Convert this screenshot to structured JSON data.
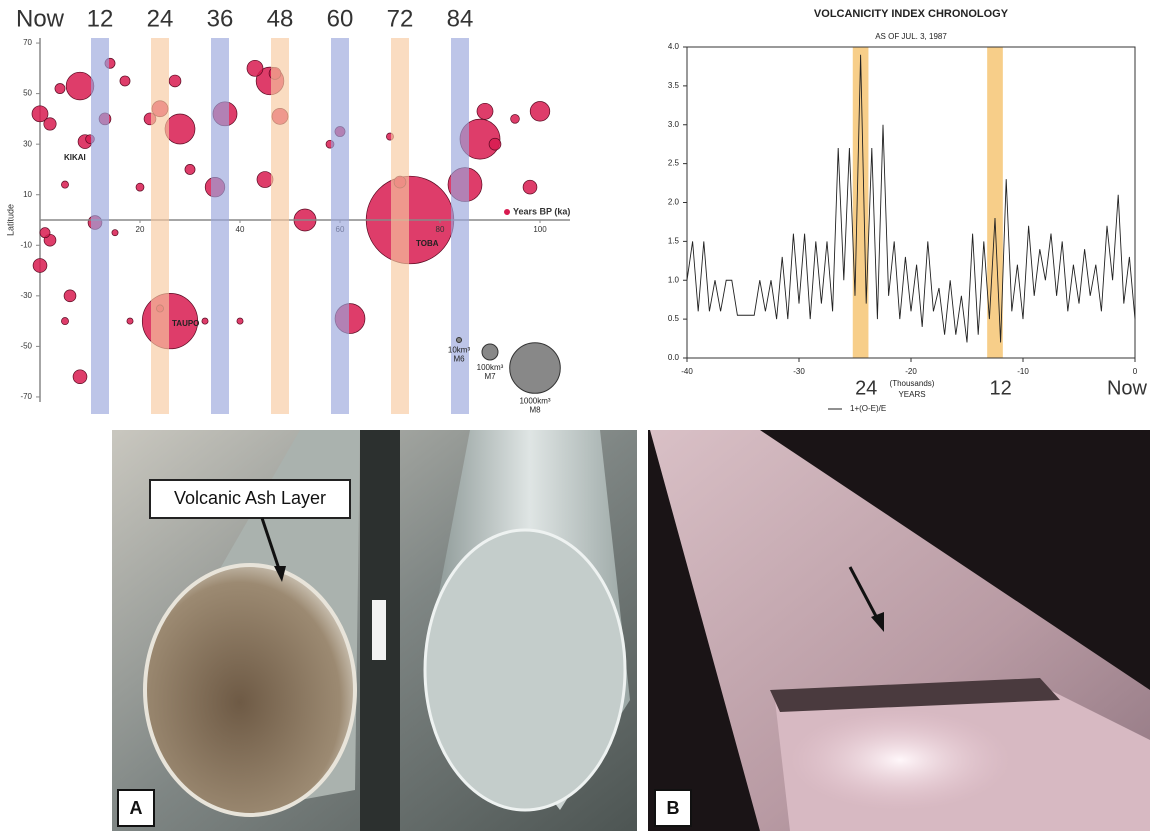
{
  "chart_data": [
    {
      "type": "scatter",
      "y_label": "Latitude",
      "x_label": "Years BP (ka)",
      "xlim": [
        -1,
        106
      ],
      "ylim": [
        -72,
        72
      ],
      "xticks": [
        20,
        40,
        60,
        80,
        100
      ],
      "yticks": [
        70,
        50,
        30,
        10,
        -10,
        -30,
        -50,
        -70
      ],
      "period_labels": [
        {
          "value": 0,
          "label": "Now"
        },
        12,
        24,
        36,
        48,
        60,
        72,
        84
      ],
      "band_colors": [
        "#9aa6dc",
        "#f8c9a0"
      ],
      "annotations": [
        "KIKAI",
        "TAUPO",
        "TOBA"
      ],
      "size_legend": [
        {
          "value": 10,
          "label": "10km³",
          "magnitude": "M6"
        },
        {
          "value": 100,
          "label": "100km³",
          "magnitude": "M7"
        },
        {
          "value": 1000,
          "label": "1000km³",
          "magnitude": "M8"
        }
      ],
      "series": [
        {
          "color": "#d81b50",
          "x": [
            74,
            26,
            85,
            88,
            53,
            62,
            28,
            8,
            37,
            46,
            0,
            100,
            89,
            9,
            35,
            27,
            24,
            45,
            48,
            11,
            13,
            0,
            6,
            8,
            2,
            98,
            22,
            17,
            72,
            30,
            43,
            47,
            91,
            4,
            14,
            18,
            33,
            40,
            5,
            60,
            2,
            20,
            5,
            70,
            95,
            1,
            15,
            24,
            10,
            58
          ],
          "y": [
            0,
            -40,
            14,
            32,
            0,
            -39,
            36,
            53,
            42,
            55,
            42,
            43,
            43,
            31,
            13,
            55,
            44,
            16,
            41,
            -1,
            40,
            -18,
            -30,
            -62,
            -8,
            13,
            40,
            55,
            15,
            20,
            60,
            58,
            30,
            52,
            62,
            -40,
            -40,
            -40,
            -40,
            35,
            38,
            13,
            14,
            33,
            40,
            -5,
            -5,
            -35,
            32,
            30
          ],
          "size": [
            3000,
            1200,
            450,
            625,
            190,
            350,
            350,
            300,
            225,
            300,
            100,
            150,
            100,
            75,
            150,
            55,
            100,
            100,
            100,
            75,
            55,
            75,
            55,
            75,
            55,
            75,
            55,
            40,
            55,
            40,
            100,
            55,
            55,
            40,
            40,
            15,
            15,
            15,
            20,
            40,
            60,
            25,
            20,
            20,
            30,
            40,
            15,
            20,
            30,
            25
          ]
        }
      ]
    },
    {
      "type": "line",
      "title": "VOLCANICITY INDEX CHRONOLOGY",
      "subtitle": "AS OF JUL. 3, 1987",
      "x_label": "YEARS",
      "x_label_note": "(Thousands)",
      "xlim": [
        -40,
        0
      ],
      "ylim": [
        0,
        4
      ],
      "xticks": [
        -40,
        -30,
        -20,
        -10,
        0
      ],
      "yticks": [
        {
          "value": 0,
          "label": "0.0"
        },
        0.5,
        {
          "value": 1,
          "label": "1.0"
        },
        1.5,
        {
          "value": 2,
          "label": "2.0"
        },
        2.5,
        {
          "value": 3,
          "label": "3.0"
        },
        3.5,
        {
          "value": 4,
          "label": "4.0"
        }
      ],
      "highlight_bands": [
        [
          -25.2,
          -23.8
        ],
        [
          -13.2,
          -11.8
        ]
      ],
      "band_color": "#f5c26b",
      "period_marks": [
        {
          "value": -24,
          "label": "24"
        },
        {
          "value": -12,
          "label": "12"
        },
        {
          "value": 0,
          "label": "Now"
        }
      ],
      "x": [
        -40,
        -39.5,
        -39,
        -38.5,
        -38,
        -37.5,
        -37,
        -36.5,
        -36,
        -35.5,
        -35,
        -34.5,
        -34,
        -33.5,
        -33,
        -32.5,
        -32,
        -31.5,
        -31,
        -30.5,
        -30,
        -29.5,
        -29,
        -28.5,
        -28,
        -27.5,
        -27,
        -26.5,
        -26,
        -25.5,
        -25,
        -24.5,
        -24,
        -23.5,
        -23,
        -22.5,
        -22,
        -21.5,
        -21,
        -20.5,
        -20,
        -19.5,
        -19,
        -18.5,
        -18,
        -17.5,
        -17,
        -16.5,
        -16,
        -15.5,
        -15,
        -14.5,
        -14,
        -13.5,
        -13,
        -12.5,
        -12,
        -11.5,
        -11,
        -10.5,
        -10,
        -9.5,
        -9,
        -8.5,
        -8,
        -7.5,
        -7,
        -6.5,
        -6,
        -5.5,
        -5,
        -4.5,
        -4,
        -3.5,
        -3,
        -2.5,
        -2,
        -1.5,
        -1,
        -0.5,
        0
      ],
      "series": [
        {
          "name": "1+(O-E)/E",
          "color": "#222222",
          "values": [
            1.0,
            1.5,
            0.6,
            1.5,
            0.6,
            1.0,
            0.6,
            1.0,
            1.0,
            0.55,
            0.55,
            0.55,
            0.55,
            1.0,
            0.6,
            1.0,
            0.5,
            1.3,
            0.5,
            1.6,
            0.7,
            1.6,
            0.5,
            1.5,
            0.7,
            1.5,
            0.6,
            2.7,
            1.0,
            2.7,
            0.8,
            3.9,
            0.7,
            2.7,
            0.5,
            3.0,
            0.8,
            1.5,
            0.5,
            1.3,
            0.6,
            1.2,
            0.4,
            1.5,
            0.6,
            0.9,
            0.3,
            1.0,
            0.3,
            0.8,
            0.2,
            1.6,
            0.3,
            1.5,
            0.5,
            1.8,
            0.2,
            2.3,
            0.6,
            1.2,
            0.5,
            1.7,
            0.8,
            1.4,
            1.0,
            1.6,
            0.8,
            1.5,
            0.6,
            1.2,
            0.7,
            1.4,
            0.8,
            1.2,
            0.6,
            1.7,
            1.0,
            2.1,
            0.7,
            1.3,
            0.5
          ]
        }
      ]
    }
  ],
  "photos": [
    {
      "label": "A",
      "callout": "Volcanic Ash Layer"
    },
    {
      "label": "B"
    }
  ]
}
